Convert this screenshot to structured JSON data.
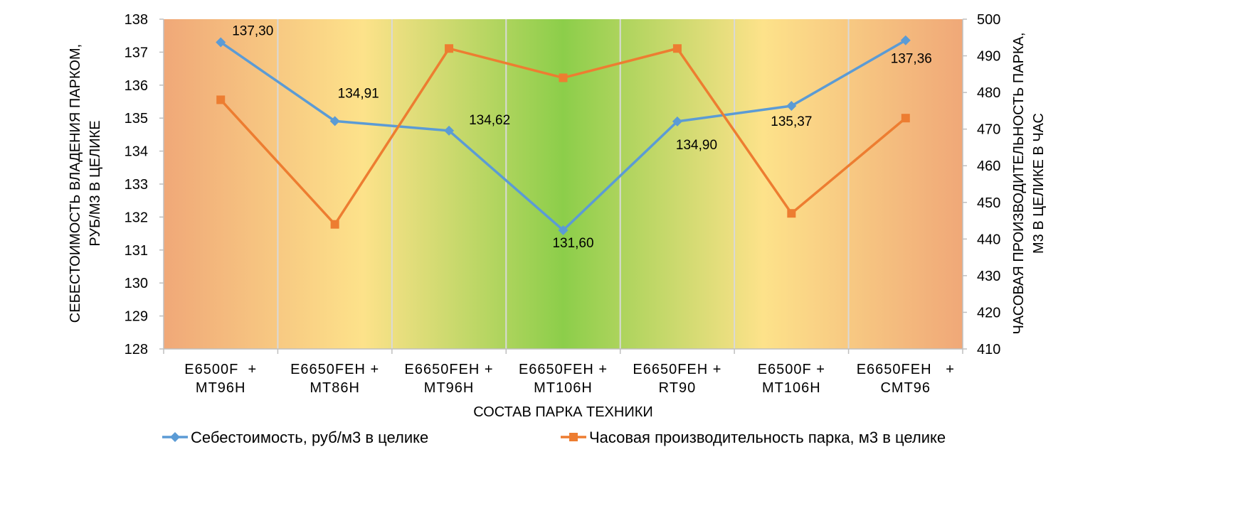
{
  "chart_data": {
    "type": "line",
    "categories": [
      [
        "E6500F  +",
        "MT96H"
      ],
      [
        "E6650FEH +",
        "MT86H"
      ],
      [
        "E6650FEH +",
        "MT96H"
      ],
      [
        "E6650FEH +",
        "MT106H"
      ],
      [
        "E6650FEH +",
        "RT90"
      ],
      [
        "E6500F +",
        "MT106H"
      ],
      [
        "E6650FEH   +",
        "CMT96"
      ]
    ],
    "xlabel": "СОСТАВ ПАРКА ТЕХНИКИ",
    "ylabel_left": [
      "СЕБЕСТОИМОСТЬ ВЛАДЕНИЯ ПАРКОМ,",
      "РУБ/М3  В ЦЕЛИКЕ"
    ],
    "ylabel_right": [
      "ЧАСОВАЯ ПРОИЗВОДИТЕЛЬНОСТЬ ПАРКА,",
      "М3 В ЦЕЛИКЕ В ЧАС"
    ],
    "ylim_left": [
      128,
      138
    ],
    "yticks_left": [
      128,
      129,
      130,
      131,
      132,
      133,
      134,
      135,
      136,
      137,
      138
    ],
    "ylim_right": [
      410,
      500
    ],
    "yticks_right": [
      410,
      420,
      430,
      440,
      450,
      460,
      470,
      480,
      490,
      500
    ],
    "grid": "vertical",
    "legend_position": "bottom",
    "background_gradient": [
      "#f0a878",
      "#fde28a",
      "#8cce4a",
      "#fde28a",
      "#f0a878"
    ],
    "series": [
      {
        "name": "Себестоимость, руб/м3 в целике",
        "axis": "left",
        "color": "#5b9bd5",
        "marker": "diamond",
        "values": [
          137.3,
          134.91,
          134.62,
          131.6,
          134.9,
          135.37,
          137.36
        ],
        "data_labels": [
          "137,30",
          "134,91",
          "134,62",
          "131,60",
          "134,90",
          "135,37",
          "137,36"
        ]
      },
      {
        "name": "Часовая производительность парка, м3 в целике",
        "axis": "right",
        "color": "#ed7d31",
        "marker": "square",
        "values": [
          478,
          444,
          492,
          484,
          492,
          447,
          473
        ]
      }
    ]
  }
}
